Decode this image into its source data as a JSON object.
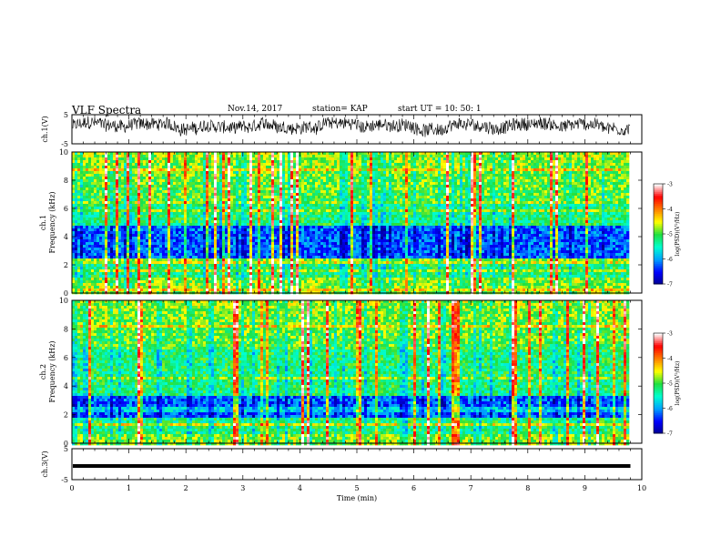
{
  "header": {
    "title": "VLF Spectra",
    "date": "Nov.14, 2017",
    "station": "station= KAP",
    "start_ut": "start  UT  =   10: 50: 1"
  },
  "chart_data": [
    {
      "type": "line",
      "panel": "ch1-waveform",
      "ylabel": "ch.1(V)",
      "ylim": [
        -5,
        5
      ],
      "yticks": [
        "5",
        "-5"
      ],
      "xlim": [
        0,
        10
      ],
      "series": [
        {
          "color": "#000000",
          "mean": 1.0,
          "noise_amplitude": 2.2,
          "trace_end_min": 9.8
        }
      ]
    },
    {
      "type": "heatmap",
      "panel": "ch1-spectrogram",
      "ylabel": "Frequency  (kHz)",
      "ylabel_prefix": "ch.1",
      "ylim": [
        0,
        10
      ],
      "yticks": [
        "0",
        "2",
        "4",
        "6",
        "8",
        "10"
      ],
      "xlim": [
        0,
        10
      ],
      "data_end_min": 9.8,
      "colorbar": {
        "label": "log(PSD)(V²/Hz)",
        "ticks": [
          "-3",
          "-4",
          "-5",
          "-6",
          "-7"
        ],
        "range": [
          -7,
          -3
        ],
        "colors": [
          "#000090",
          "#0000ff",
          "#00a0ff",
          "#00ffd0",
          "#20e040",
          "#ffff00",
          "#ff8000",
          "#ff0000",
          "#ffffff"
        ]
      },
      "bands_khz": {
        "quiet_blue": [
          2.5,
          4.7
        ],
        "bright_line": [
          2.0,
          2.2
        ],
        "yellow_low": [
          0.0,
          1.0
        ]
      }
    },
    {
      "type": "heatmap",
      "panel": "ch2-spectrogram",
      "ylabel": "Frequency  (kHz)",
      "ylabel_prefix": "ch.2",
      "ylim": [
        0,
        10
      ],
      "yticks": [
        "0",
        "2",
        "4",
        "6",
        "8",
        "10"
      ],
      "xlim": [
        0,
        10
      ],
      "data_end_min": 9.8,
      "colorbar": {
        "label": "log(PSD)(V²/Hz)",
        "ticks": [
          "-3",
          "-4",
          "-5",
          "-6",
          "-7"
        ],
        "range": [
          -7,
          -3
        ],
        "colors": [
          "#000090",
          "#0000ff",
          "#00a0ff",
          "#00ffd0",
          "#20e040",
          "#ffff00",
          "#ff8000",
          "#ff0000",
          "#ffffff"
        ]
      },
      "bands_khz": {
        "quiet_blue": [
          1.8,
          3.4
        ],
        "bright_line": [
          1.2,
          1.4
        ],
        "yellow_low": [
          0.0,
          0.6
        ]
      }
    },
    {
      "type": "line",
      "panel": "ch3-waveform",
      "ylabel": "ch.3(V)",
      "ylim": [
        -5,
        5
      ],
      "yticks": [
        "5",
        "-5"
      ],
      "xlim": [
        0,
        10
      ],
      "xticks": [
        "0",
        "1",
        "2",
        "3",
        "4",
        "5",
        "6",
        "7",
        "8",
        "9",
        "10"
      ],
      "xlabel": "Time  (min)",
      "series": [
        {
          "color": "#000000",
          "constant_value": 0.0,
          "trace_end_min": 9.8
        }
      ]
    }
  ]
}
